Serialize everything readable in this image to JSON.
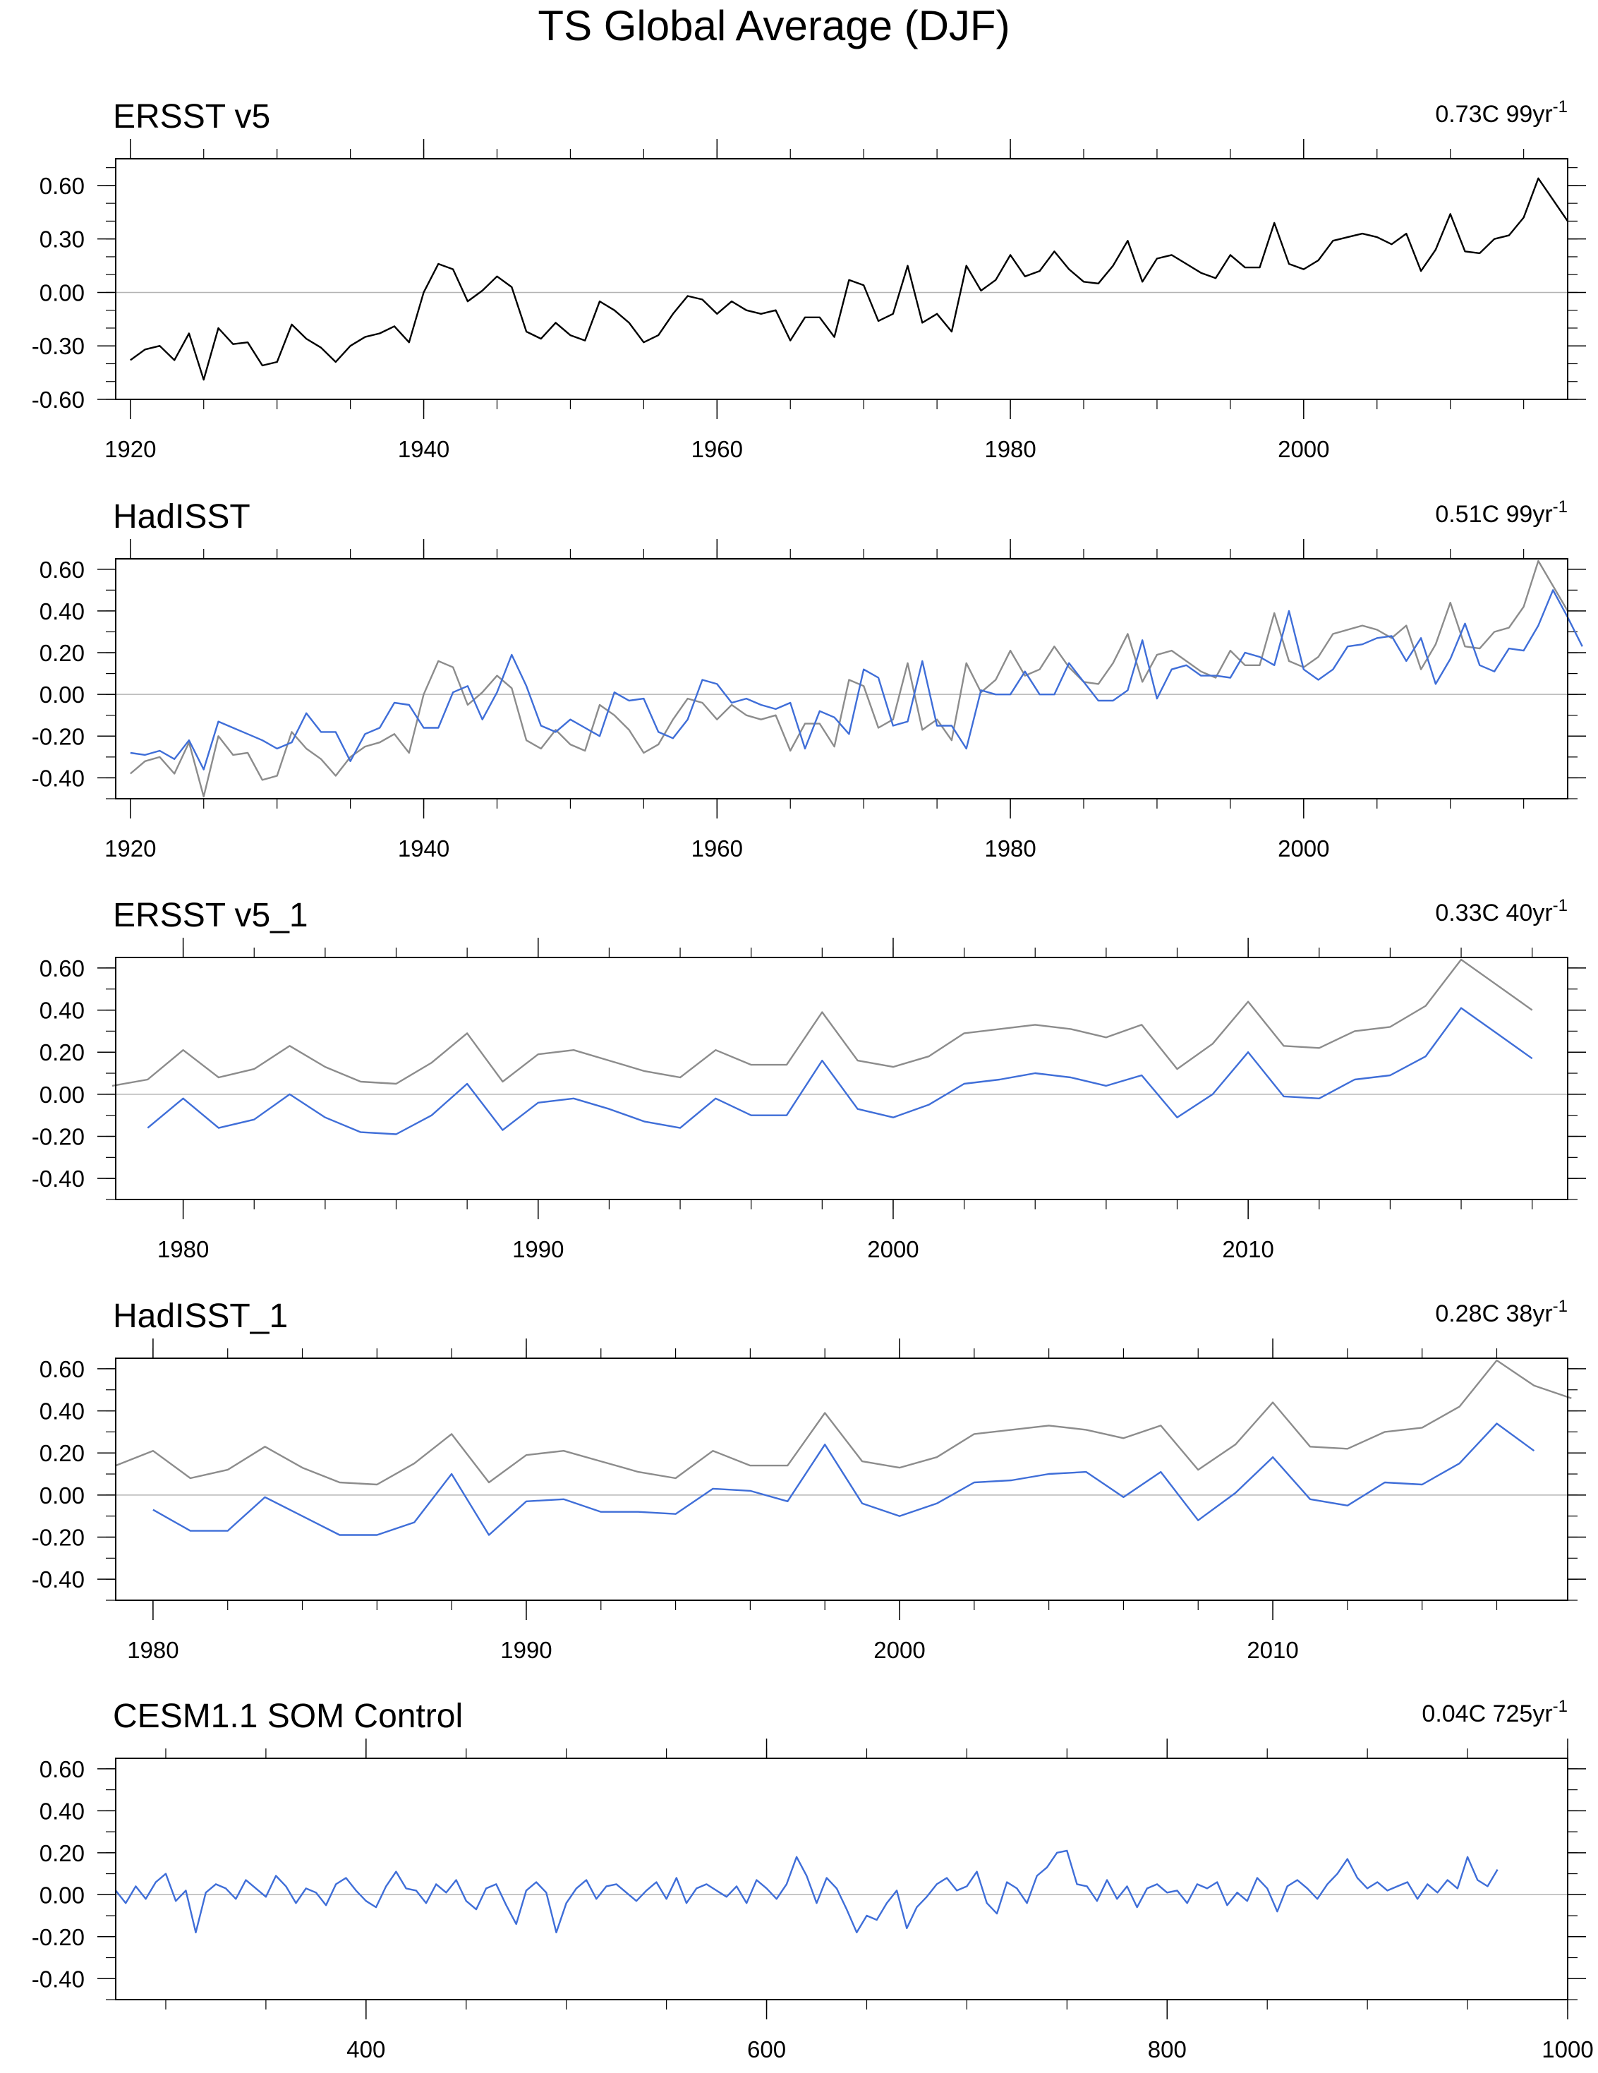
{
  "figure": {
    "title": "TS Global Average (DJF)"
  },
  "chart_data": [
    {
      "type": "line",
      "title": "ERSST v5",
      "trend_value": "0.73C 99yr",
      "trend_sup": "-1",
      "xlim": [
        1919,
        2018
      ],
      "ylim": [
        -0.6,
        0.75
      ],
      "x_ticks": [
        1920,
        1940,
        1960,
        1980,
        2000
      ],
      "y_ticks": [
        "0.60",
        "0.30",
        "0.00",
        "-0.30",
        "-0.60"
      ],
      "y_tick_values": [
        0.6,
        0.3,
        0.0,
        -0.3,
        -0.6
      ],
      "x_minor_step": 5,
      "y_minor_step": 0.1,
      "zero_line": true,
      "series": [
        {
          "color": "#000000",
          "x_start": 1920,
          "x_step": 1,
          "values": [
            -0.38,
            -0.32,
            -0.3,
            -0.38,
            -0.23,
            -0.49,
            -0.2,
            -0.29,
            -0.28,
            -0.41,
            -0.39,
            -0.18,
            -0.26,
            -0.31,
            -0.39,
            -0.3,
            -0.25,
            -0.23,
            -0.19,
            -0.28,
            0.0,
            0.16,
            0.13,
            -0.05,
            0.01,
            0.09,
            0.03,
            -0.22,
            -0.26,
            -0.17,
            -0.24,
            -0.27,
            -0.05,
            -0.1,
            -0.17,
            -0.28,
            -0.24,
            -0.12,
            -0.02,
            -0.04,
            -0.12,
            -0.05,
            -0.1,
            -0.12,
            -0.1,
            -0.27,
            -0.14,
            -0.14,
            -0.25,
            0.07,
            0.04,
            -0.16,
            -0.12,
            0.15,
            -0.17,
            -0.12,
            -0.22,
            0.15,
            0.01,
            0.07,
            0.21,
            0.09,
            0.12,
            0.23,
            0.13,
            0.06,
            0.05,
            0.15,
            0.29,
            0.06,
            0.19,
            0.21,
            0.16,
            0.11,
            0.08,
            0.21,
            0.14,
            0.14,
            0.39,
            0.16,
            0.13,
            0.18,
            0.29,
            0.31,
            0.33,
            0.31,
            0.27,
            0.33,
            0.12,
            0.24,
            0.44,
            0.23,
            0.22,
            0.3,
            0.32,
            0.42,
            0.64,
            0.52,
            0.4
          ]
        }
      ]
    },
    {
      "type": "line",
      "title": "HadISST",
      "trend_value": "0.51C 99yr",
      "trend_sup": "-1",
      "xlim": [
        1919,
        2018
      ],
      "ylim": [
        -0.5,
        0.65
      ],
      "x_ticks": [
        1920,
        1940,
        1960,
        1980,
        2000
      ],
      "y_ticks": [
        "0.60",
        "0.40",
        "0.20",
        "0.00",
        "-0.20",
        "-0.40"
      ],
      "y_tick_values": [
        0.6,
        0.4,
        0.2,
        0.0,
        -0.2,
        -0.4
      ],
      "x_minor_step": 5,
      "y_minor_step": 0.1,
      "zero_line": true,
      "series": [
        {
          "color": "#8c8c8c",
          "x_start": 1920,
          "x_step": 1,
          "values": [
            -0.38,
            -0.32,
            -0.3,
            -0.38,
            -0.23,
            -0.49,
            -0.2,
            -0.29,
            -0.28,
            -0.41,
            -0.39,
            -0.18,
            -0.26,
            -0.31,
            -0.39,
            -0.3,
            -0.25,
            -0.23,
            -0.19,
            -0.28,
            0.0,
            0.16,
            0.13,
            -0.05,
            0.01,
            0.09,
            0.03,
            -0.22,
            -0.26,
            -0.17,
            -0.24,
            -0.27,
            -0.05,
            -0.1,
            -0.17,
            -0.28,
            -0.24,
            -0.12,
            -0.02,
            -0.04,
            -0.12,
            -0.05,
            -0.1,
            -0.12,
            -0.1,
            -0.27,
            -0.14,
            -0.14,
            -0.25,
            0.07,
            0.04,
            -0.16,
            -0.12,
            0.15,
            -0.17,
            -0.12,
            -0.22,
            0.15,
            0.01,
            0.07,
            0.21,
            0.09,
            0.12,
            0.23,
            0.13,
            0.06,
            0.05,
            0.15,
            0.29,
            0.06,
            0.19,
            0.21,
            0.16,
            0.11,
            0.08,
            0.21,
            0.14,
            0.14,
            0.39,
            0.16,
            0.13,
            0.18,
            0.29,
            0.31,
            0.33,
            0.31,
            0.27,
            0.33,
            0.12,
            0.24,
            0.44,
            0.23,
            0.22,
            0.3,
            0.32,
            0.42,
            0.64,
            0.52,
            0.4
          ]
        },
        {
          "color": "#3f6ed8",
          "x_start": 1920,
          "x_step": 1,
          "values": [
            -0.28,
            -0.29,
            -0.27,
            -0.31,
            -0.22,
            -0.36,
            -0.13,
            -0.16,
            -0.19,
            -0.22,
            -0.26,
            -0.23,
            -0.09,
            -0.18,
            -0.18,
            -0.32,
            -0.19,
            -0.16,
            -0.04,
            -0.05,
            -0.16,
            -0.16,
            0.01,
            0.04,
            -0.12,
            0.01,
            0.19,
            0.04,
            -0.15,
            -0.18,
            -0.12,
            -0.16,
            -0.2,
            0.01,
            -0.03,
            -0.02,
            -0.18,
            -0.21,
            -0.12,
            0.07,
            0.05,
            -0.04,
            -0.02,
            -0.05,
            -0.07,
            -0.04,
            -0.26,
            -0.08,
            -0.11,
            -0.19,
            0.12,
            0.08,
            -0.15,
            -0.13,
            0.16,
            -0.15,
            -0.15,
            -0.26,
            0.02,
            0.0,
            0.0,
            0.11,
            0.0,
            0.0,
            0.15,
            0.06,
            -0.03,
            -0.03,
            0.02,
            0.26,
            -0.02,
            0.12,
            0.14,
            0.09,
            0.09,
            0.08,
            0.2,
            0.18,
            0.14,
            0.4,
            0.12,
            0.07,
            0.12,
            0.23,
            0.24,
            0.27,
            0.28,
            0.16,
            0.27,
            0.05,
            0.17,
            0.34,
            0.14,
            0.11,
            0.22,
            0.21,
            0.33,
            0.5,
            0.37,
            0.23
          ]
        }
      ]
    },
    {
      "type": "line",
      "title": "ERSST v5_1",
      "trend_value": "0.33C 40yr",
      "trend_sup": "-1",
      "xlim": [
        1978.1,
        2019.0
      ],
      "ylim": [
        -0.5,
        0.65
      ],
      "x_ticks": [
        1980,
        1990,
        2000,
        2010
      ],
      "y_ticks": [
        "0.60",
        "0.40",
        "0.20",
        "0.00",
        "-0.20",
        "-0.40"
      ],
      "y_tick_values": [
        0.6,
        0.4,
        0.2,
        0.0,
        -0.2,
        -0.4
      ],
      "x_minor_step": 2,
      "y_minor_step": 0.1,
      "zero_line": true,
      "series": [
        {
          "color": "#8c8c8c",
          "x_start": 1978,
          "x_step": 1,
          "values": [
            0.04,
            0.07,
            0.21,
            0.08,
            0.12,
            0.23,
            0.13,
            0.06,
            0.05,
            0.15,
            0.29,
            0.06,
            0.19,
            0.21,
            0.16,
            0.11,
            0.08,
            0.21,
            0.14,
            0.14,
            0.39,
            0.16,
            0.13,
            0.18,
            0.29,
            0.31,
            0.33,
            0.31,
            0.27,
            0.33,
            0.12,
            0.24,
            0.44,
            0.23,
            0.22,
            0.3,
            0.32,
            0.42,
            0.64,
            0.52,
            0.4
          ]
        },
        {
          "color": "#3f6ed8",
          "x_start": 1979,
          "x_step": 1,
          "values": [
            -0.16,
            -0.02,
            -0.16,
            -0.12,
            0.0,
            -0.11,
            -0.18,
            -0.19,
            -0.1,
            0.05,
            -0.17,
            -0.04,
            -0.02,
            -0.07,
            -0.13,
            -0.16,
            -0.02,
            -0.1,
            -0.1,
            0.16,
            -0.07,
            -0.11,
            -0.05,
            0.05,
            0.07,
            0.1,
            0.08,
            0.04,
            0.09,
            -0.11,
            0.0,
            0.2,
            -0.01,
            -0.02,
            0.07,
            0.09,
            0.18,
            0.41,
            0.29,
            0.17
          ]
        }
      ]
    },
    {
      "type": "line",
      "title": "HadISST_1",
      "trend_value": "0.28C 38yr",
      "trend_sup": "-1",
      "xlim": [
        1979.0,
        2017.9
      ],
      "ylim": [
        -0.5,
        0.65
      ],
      "x_ticks": [
        1980,
        1990,
        2000,
        2010
      ],
      "y_ticks": [
        "0.60",
        "0.40",
        "0.20",
        "0.00",
        "-0.20",
        "-0.40"
      ],
      "y_tick_values": [
        0.6,
        0.4,
        0.2,
        0.0,
        -0.2,
        -0.4
      ],
      "x_minor_step": 2,
      "y_minor_step": 0.1,
      "zero_line": true,
      "series": [
        {
          "color": "#8c8c8c",
          "x_start": 1979,
          "x_step": 1,
          "values": [
            0.14,
            0.21,
            0.08,
            0.12,
            0.23,
            0.13,
            0.06,
            0.05,
            0.15,
            0.29,
            0.06,
            0.19,
            0.21,
            0.16,
            0.11,
            0.08,
            0.21,
            0.14,
            0.14,
            0.39,
            0.16,
            0.13,
            0.18,
            0.29,
            0.31,
            0.33,
            0.31,
            0.27,
            0.33,
            0.12,
            0.24,
            0.44,
            0.23,
            0.22,
            0.3,
            0.32,
            0.42,
            0.64,
            0.52,
            0.46
          ]
        },
        {
          "color": "#3f6ed8",
          "x_start": 1980,
          "x_step": 1,
          "values": [
            -0.07,
            -0.17,
            -0.17,
            -0.01,
            -0.1,
            -0.19,
            -0.19,
            -0.13,
            0.1,
            -0.19,
            -0.03,
            -0.02,
            -0.08,
            -0.08,
            -0.09,
            0.03,
            0.02,
            -0.03,
            0.24,
            -0.04,
            -0.1,
            -0.04,
            0.06,
            0.07,
            0.1,
            0.11,
            -0.01,
            0.11,
            -0.12,
            0.01,
            0.18,
            -0.02,
            -0.05,
            0.06,
            0.05,
            0.15,
            0.34,
            0.21
          ]
        }
      ]
    },
    {
      "type": "line",
      "title": "CESM1.1 SOM Control",
      "trend_value": "0.04C 725yr",
      "trend_sup": "-1",
      "xlim": [
        275,
        1000
      ],
      "ylim": [
        -0.5,
        0.65
      ],
      "x_ticks": [
        400,
        600,
        800,
        1000
      ],
      "y_ticks": [
        "0.60",
        "0.40",
        "0.20",
        "0.00",
        "-0.20",
        "-0.40"
      ],
      "y_tick_values": [
        0.6,
        0.4,
        0.2,
        0.0,
        -0.2,
        -0.4
      ],
      "x_minor_step": 50,
      "y_minor_step": 0.1,
      "zero_line": true,
      "series": [
        {
          "color": "#3f6ed8",
          "x_start": 275,
          "x_step": 5,
          "values": [
            0.02,
            -0.04,
            0.04,
            -0.02,
            0.06,
            0.1,
            -0.03,
            0.02,
            -0.18,
            0.01,
            0.05,
            0.03,
            -0.02,
            0.07,
            0.03,
            -0.01,
            0.09,
            0.04,
            -0.04,
            0.03,
            0.01,
            -0.05,
            0.05,
            0.08,
            0.02,
            -0.03,
            -0.06,
            0.04,
            0.11,
            0.03,
            0.02,
            -0.04,
            0.05,
            0.01,
            0.07,
            -0.03,
            -0.07,
            0.03,
            0.05,
            -0.05,
            -0.14,
            0.02,
            0.06,
            0.01,
            -0.18,
            -0.04,
            0.03,
            0.07,
            -0.02,
            0.04,
            0.05,
            0.01,
            -0.03,
            0.02,
            0.06,
            -0.02,
            0.08,
            -0.04,
            0.03,
            0.05,
            0.02,
            -0.01,
            0.04,
            -0.04,
            0.07,
            0.03,
            -0.02,
            0.05,
            0.18,
            0.09,
            -0.04,
            0.08,
            0.03,
            -0.07,
            -0.18,
            -0.1,
            -0.12,
            -0.04,
            0.02,
            -0.16,
            -0.06,
            -0.01,
            0.05,
            0.08,
            0.02,
            0.04,
            0.11,
            -0.04,
            -0.09,
            0.06,
            0.03,
            -0.04,
            0.09,
            0.13,
            0.2,
            0.21,
            0.05,
            0.04,
            -0.03,
            0.07,
            -0.02,
            0.04,
            -0.06,
            0.03,
            0.05,
            0.01,
            0.02,
            -0.04,
            0.05,
            0.03,
            0.06,
            -0.05,
            0.01,
            -0.03,
            0.08,
            0.03,
            -0.08,
            0.04,
            0.07,
            0.03,
            -0.02,
            0.05,
            0.1,
            0.17,
            0.08,
            0.03,
            0.06,
            0.02,
            0.04,
            0.06,
            -0.02,
            0.05,
            0.01,
            0.07,
            0.03,
            0.18,
            0.07,
            0.04,
            0.12
          ]
        }
      ]
    }
  ]
}
